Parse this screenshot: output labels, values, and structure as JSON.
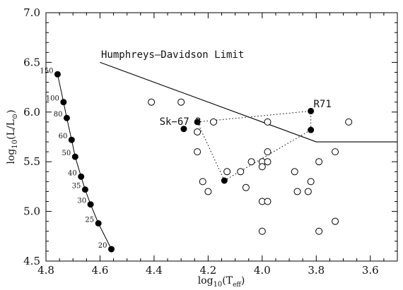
{
  "chart_data": {
    "type": "scatter",
    "title": "",
    "xlabel": "log10(Teff)",
    "ylabel": "log10(L/L⊙)",
    "xlim": [
      4.8,
      3.5
    ],
    "ylim": [
      4.5,
      7.0
    ],
    "x_reversed": true,
    "xticks": [
      4.8,
      4.6,
      4.4,
      4.2,
      4.0,
      3.8,
      3.6
    ],
    "yticks": [
      4.5,
      5.0,
      5.5,
      6.0,
      6.5,
      7.0
    ],
    "xtick_labels": [
      "4.8",
      "4.6",
      "4.4",
      "4.2",
      "4.0",
      "3.8",
      "3.6"
    ],
    "ytick_labels": [
      "4.5",
      "5.0",
      "5.5",
      "6.0",
      "6.5",
      "7.0"
    ],
    "xlabel_main": "log",
    "xlabel_sub": "10",
    "xlabel_arg": "(T",
    "xlabel_argsub": "eff",
    "xlabel_close": ")",
    "ylabel_main": "log",
    "ylabel_sub": "10",
    "ylabel_arg": "(L/L",
    "ylabel_argsub": "⊙",
    "ylabel_close": ")",
    "grid": false,
    "series": [
      {
        "kind": "zams-track",
        "marker": "filled",
        "points": [
          {
            "x": 4.757,
            "y": 6.38,
            "label": "150"
          },
          {
            "x": 4.735,
            "y": 6.1,
            "label": "100"
          },
          {
            "x": 4.723,
            "y": 5.94,
            "label": "80"
          },
          {
            "x": 4.705,
            "y": 5.72,
            "label": "60"
          },
          {
            "x": 4.692,
            "y": 5.55,
            "label": "50"
          },
          {
            "x": 4.67,
            "y": 5.35,
            "label": "40"
          },
          {
            "x": 4.655,
            "y": 5.22,
            "label": "35"
          },
          {
            "x": 4.635,
            "y": 5.07,
            "label": "30"
          },
          {
            "x": 4.606,
            "y": 4.88,
            "label": "25"
          },
          {
            "x": 4.558,
            "y": 4.62,
            "label": "20"
          }
        ]
      },
      {
        "kind": "open-stars",
        "marker": "open",
        "points": [
          {
            "x": 4.41,
            "y": 6.1
          },
          {
            "x": 4.3,
            "y": 6.1
          },
          {
            "x": 4.24,
            "y": 5.8
          },
          {
            "x": 4.24,
            "y": 5.6
          },
          {
            "x": 4.18,
            "y": 5.9
          },
          {
            "x": 4.22,
            "y": 5.3
          },
          {
            "x": 4.2,
            "y": 5.2
          },
          {
            "x": 4.13,
            "y": 5.4
          },
          {
            "x": 4.08,
            "y": 5.4
          },
          {
            "x": 4.06,
            "y": 5.24
          },
          {
            "x": 4.04,
            "y": 5.5
          },
          {
            "x": 4.0,
            "y": 5.5
          },
          {
            "x": 4.0,
            "y": 5.45
          },
          {
            "x": 3.98,
            "y": 5.5
          },
          {
            "x": 3.98,
            "y": 5.6
          },
          {
            "x": 3.98,
            "y": 5.9
          },
          {
            "x": 4.0,
            "y": 5.1
          },
          {
            "x": 3.98,
            "y": 5.1
          },
          {
            "x": 4.0,
            "y": 4.8
          },
          {
            "x": 3.88,
            "y": 5.4
          },
          {
            "x": 3.87,
            "y": 5.2
          },
          {
            "x": 3.83,
            "y": 5.2
          },
          {
            "x": 3.82,
            "y": 5.3
          },
          {
            "x": 3.79,
            "y": 5.5
          },
          {
            "x": 3.79,
            "y": 4.8
          },
          {
            "x": 3.73,
            "y": 5.6
          },
          {
            "x": 3.73,
            "y": 4.9
          },
          {
            "x": 3.68,
            "y": 5.9
          }
        ]
      },
      {
        "kind": "filled-stars",
        "marker": "filled",
        "points": [
          {
            "x": 4.29,
            "y": 5.83
          },
          {
            "x": 4.24,
            "y": 5.9
          },
          {
            "x": 4.14,
            "y": 5.31
          },
          {
            "x": 3.82,
            "y": 6.01
          },
          {
            "x": 3.82,
            "y": 5.82
          }
        ]
      }
    ],
    "dotted_paths": [
      [
        {
          "x": 4.24,
          "y": 5.9
        },
        {
          "x": 3.82,
          "y": 6.01
        }
      ],
      [
        {
          "x": 4.24,
          "y": 5.9
        },
        {
          "x": 4.14,
          "y": 5.31
        }
      ],
      [
        {
          "x": 4.14,
          "y": 5.31
        },
        {
          "x": 3.82,
          "y": 5.82
        }
      ],
      [
        {
          "x": 3.82,
          "y": 5.82
        },
        {
          "x": 3.82,
          "y": 6.01
        }
      ]
    ],
    "hd_limit": {
      "label": "Humphreys–Davidson Limit",
      "points": [
        {
          "x": 4.6,
          "y": 6.5
        },
        {
          "x": 3.8,
          "y": 5.7
        },
        {
          "x": 3.5,
          "y": 5.7
        }
      ]
    },
    "annotations": [
      {
        "text": "Sk−67 2",
        "x": 4.38,
        "y": 5.87
      },
      {
        "text": "R71",
        "x": 3.81,
        "y": 6.05
      }
    ]
  }
}
